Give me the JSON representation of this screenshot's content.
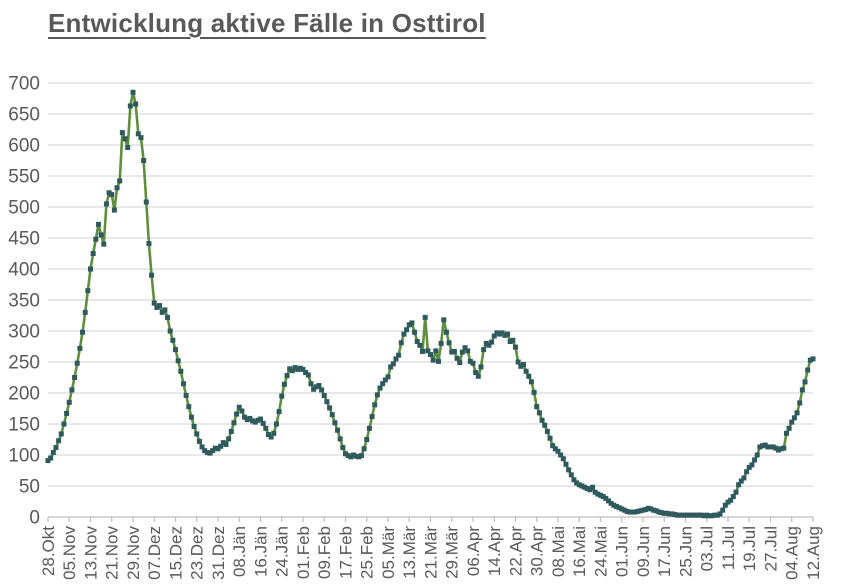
{
  "chart_data": {
    "type": "line",
    "title": "Entwicklung aktive Fälle in Osttirol",
    "xlabel": "",
    "ylabel": "",
    "ylim": [
      0,
      700
    ],
    "yticks": [
      0,
      50,
      100,
      150,
      200,
      250,
      300,
      350,
      400,
      450,
      500,
      550,
      600,
      650,
      700
    ],
    "grid": "horizontal",
    "legend": "none",
    "x_tick_interval_days": 8,
    "x_tick_labels": [
      "28.Okt",
      "05.Nov",
      "13.Nov",
      "21.Nov",
      "29.Nov",
      "07.Dez",
      "15.Dez",
      "23.Dez",
      "31.Dez",
      "08.Jän",
      "16.Jän",
      "24.Jän",
      "01.Feb",
      "09.Feb",
      "17.Feb",
      "25.Feb",
      "05.Mär",
      "13.Mär",
      "21.Mär",
      "29.Mär",
      "06.Apr",
      "14.Apr",
      "22.Apr",
      "30.Apr",
      "08.Mai",
      "16.Mai",
      "24.Mai",
      "01.Jun",
      "09.Jun",
      "17.Jun",
      "25.Jun",
      "03.Jul",
      "11.Jul",
      "19.Jul",
      "27.Jul",
      "04.Aug",
      "12.Aug"
    ],
    "series": [
      {
        "name": "aktive Fälle",
        "marker": "square",
        "values": [
          91,
          95,
          104,
          112,
          123,
          134,
          150,
          167,
          185,
          205,
          225,
          248,
          272,
          298,
          330,
          365,
          400,
          425,
          448,
          472,
          455,
          440,
          505,
          523,
          520,
          495,
          531,
          542,
          620,
          610,
          596,
          663,
          685,
          666,
          618,
          612,
          575,
          508,
          441,
          390,
          345,
          338,
          341,
          330,
          334,
          322,
          300,
          285,
          270,
          252,
          235,
          215,
          196,
          178,
          161,
          146,
          134,
          122,
          113,
          107,
          104,
          103,
          107,
          111,
          110,
          114,
          120,
          117,
          126,
          138,
          152,
          166,
          177,
          171,
          161,
          157,
          159,
          155,
          153,
          156,
          158,
          151,
          143,
          133,
          129,
          135,
          150,
          170,
          195,
          214,
          228,
          239,
          236,
          241,
          238,
          240,
          238,
          233,
          229,
          215,
          206,
          210,
          212,
          205,
          196,
          186,
          176,
          165,
          152,
          140,
          126,
          112,
          102,
          99,
          97,
          100,
          98,
          97,
          99,
          110,
          125,
          143,
          162,
          181,
          197,
          208,
          215,
          221,
          226,
          242,
          247,
          255,
          261,
          281,
          295,
          302,
          310,
          313,
          298,
          283,
          277,
          267,
          322,
          268,
          262,
          253,
          268,
          251,
          280,
          318,
          298,
          281,
          266,
          267,
          256,
          249,
          266,
          273,
          268,
          251,
          248,
          233,
          227,
          242,
          270,
          280,
          277,
          282,
          292,
          297,
          295,
          297,
          293,
          295,
          283,
          285,
          274,
          250,
          243,
          246,
          235,
          227,
          218,
          201,
          178,
          168,
          156,
          148,
          138,
          127,
          115,
          110,
          106,
          100,
          94,
          85,
          76,
          68,
          60,
          55,
          52,
          50,
          48,
          46,
          44,
          48,
          40,
          37,
          35,
          33,
          30,
          26,
          22,
          19,
          17,
          15,
          13,
          11,
          9,
          8,
          8,
          8,
          9,
          10,
          11,
          12,
          14,
          13,
          11,
          10,
          8,
          7,
          6,
          6,
          5,
          5,
          4,
          3,
          3,
          3,
          3,
          3,
          3,
          3,
          3,
          3,
          3,
          2,
          3,
          2,
          2,
          3,
          3,
          5,
          11,
          19,
          24,
          27,
          33,
          40,
          52,
          58,
          63,
          73,
          80,
          84,
          92,
          100,
          113,
          115,
          116,
          113,
          113,
          113,
          111,
          108,
          110,
          111,
          135,
          143,
          153,
          160,
          168,
          184,
          205,
          218,
          237,
          253,
          255
        ]
      }
    ],
    "colors": {
      "line": "#5f8f3c",
      "marker": "#2f5a5d",
      "grid": "#d9d9d9",
      "axis": "#bfbfbf",
      "tick_text": "#595959",
      "title_text": "#595959",
      "background": "#ffffff"
    }
  }
}
